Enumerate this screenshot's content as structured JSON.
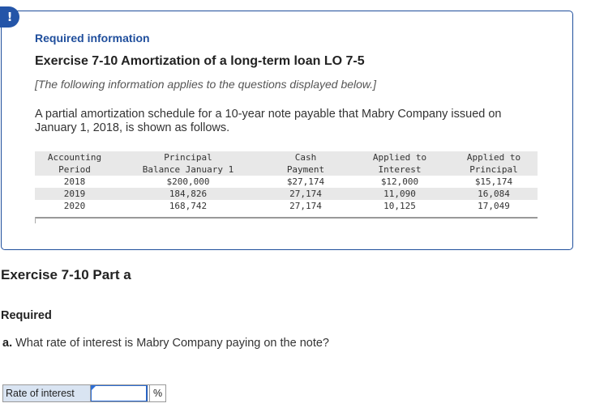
{
  "alert": {
    "symbol": "!",
    "icon": "alert-icon"
  },
  "info": {
    "required_info": "Required information",
    "exercise_title": "Exercise 7-10 Amortization of a long-term loan LO 7-5",
    "applies_note": "[The following information applies to the questions displayed below.]",
    "intro": "A partial amortization schedule for a 10-year note payable that Mabry Company issued on January 1, 2018, is shown as follows."
  },
  "schedule": {
    "headers_line1": [
      "Accounting",
      "Principal",
      "Cash",
      "Applied to",
      "Applied to"
    ],
    "headers_line2": [
      "Period",
      "Balance January 1",
      "Payment",
      "Interest",
      "Principal"
    ],
    "rows": [
      [
        "2018",
        "$200,000",
        "$27,174",
        "$12,000",
        "$15,174"
      ],
      [
        "2019",
        "184,826",
        "27,174",
        "11,090",
        "16,084"
      ],
      [
        "2020",
        "168,742",
        "27,174",
        "10,125",
        "17,049"
      ]
    ]
  },
  "part": {
    "title": "Exercise 7-10 Part a",
    "required": "Required",
    "question_prefix": "a.",
    "question_text": " What rate of interest is Mabry Company paying on the note?"
  },
  "answer": {
    "label": "Rate of interest",
    "value": "",
    "unit": "%"
  },
  "colors": {
    "accent": "#1f4e9c",
    "label_bg": "#d9e4f2",
    "table_shade": "#e8e8e8"
  }
}
